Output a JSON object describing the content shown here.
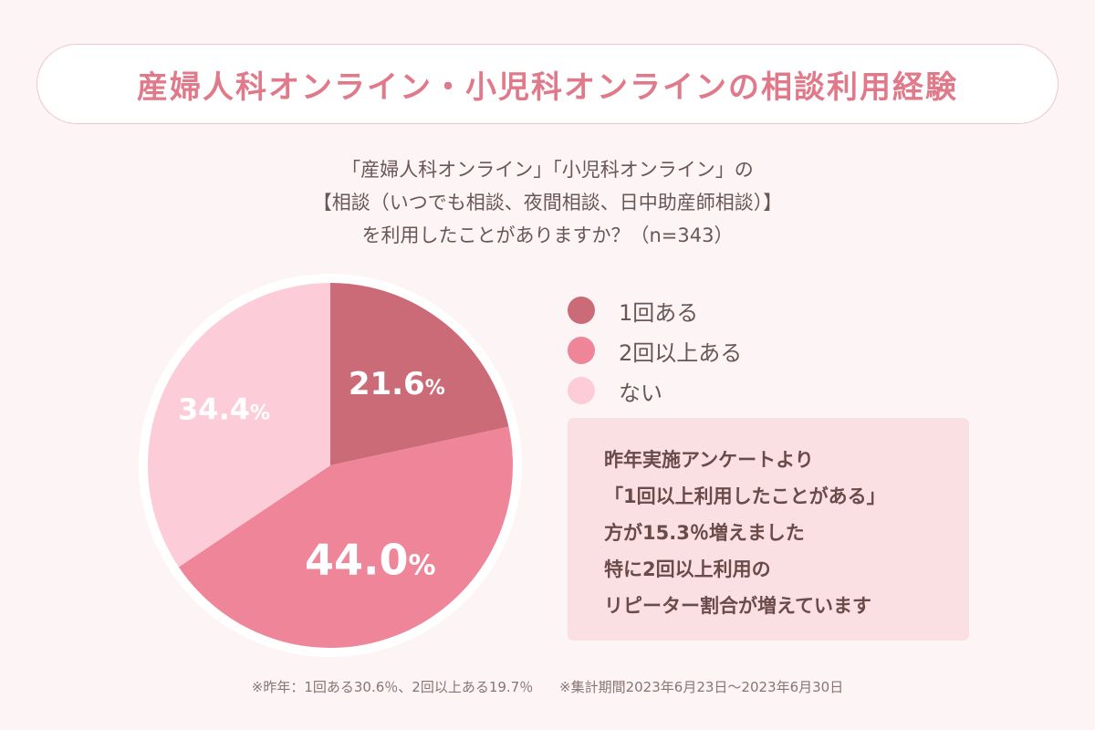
{
  "title": "産婦人科オンライン・小児科オンラインの相談利用経験",
  "question": [
    "「産婦人科オンライン」「小児科オンライン」の",
    "【相談（いつでも相談、夜間相談、日中助産師相談）】",
    "を利用したことがありますか？（n=343）"
  ],
  "chart_data": {
    "type": "pie",
    "categories": [
      "1回ある",
      "2回以上ある",
      "ない"
    ],
    "values": [
      21.6,
      44.0,
      34.4
    ],
    "value_labels": [
      "21.6",
      "44.0",
      "34.4"
    ],
    "unit": "%",
    "colors": [
      "#cc6b78",
      "#ef8599",
      "#fccdd8"
    ],
    "legend_placement": "right"
  },
  "note": [
    "昨年実施アンケートより",
    "「1回以上利用したことがある」",
    "方が15.3％増えました",
    "特に2回以上利用の",
    "リピーター割合が増えています"
  ],
  "footer": {
    "last_year": "※昨年：1回ある30.6％、2回以上ある19.7％",
    "period": "※集計期間2023年6月23日〜2023年6月30日"
  },
  "colors": {
    "title": "#e07a8b",
    "background": "#fdf5f5",
    "note_bg": "#fbe0e3"
  }
}
